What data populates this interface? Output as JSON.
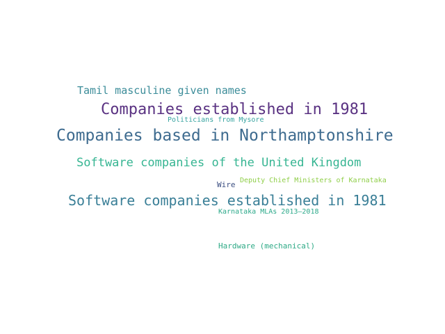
{
  "words": [
    {
      "text": "Tamil masculine given names",
      "color": "#3b8c99"
    },
    {
      "text": "Companies established in 1981",
      "color": "#5a3282"
    },
    {
      "text": "Politicians from Mysore",
      "color": "#36a3a0"
    },
    {
      "text": "Companies based in Northamptonshire",
      "color": "#3e6b8f"
    },
    {
      "text": "Software companies of the United Kingdom",
      "color": "#36b592"
    },
    {
      "text": "Wire",
      "color": "#3c4f82"
    },
    {
      "text": "Deputy Chief Ministers of Karnataka",
      "color": "#8fce48"
    },
    {
      "text": "Software companies established in 1981",
      "color": "#3a7f97"
    },
    {
      "text": "Karnataka MLAs 2013–2018",
      "color": "#2ca98a"
    },
    {
      "text": "Hardware (mechanical)",
      "color": "#2eaa86"
    }
  ]
}
